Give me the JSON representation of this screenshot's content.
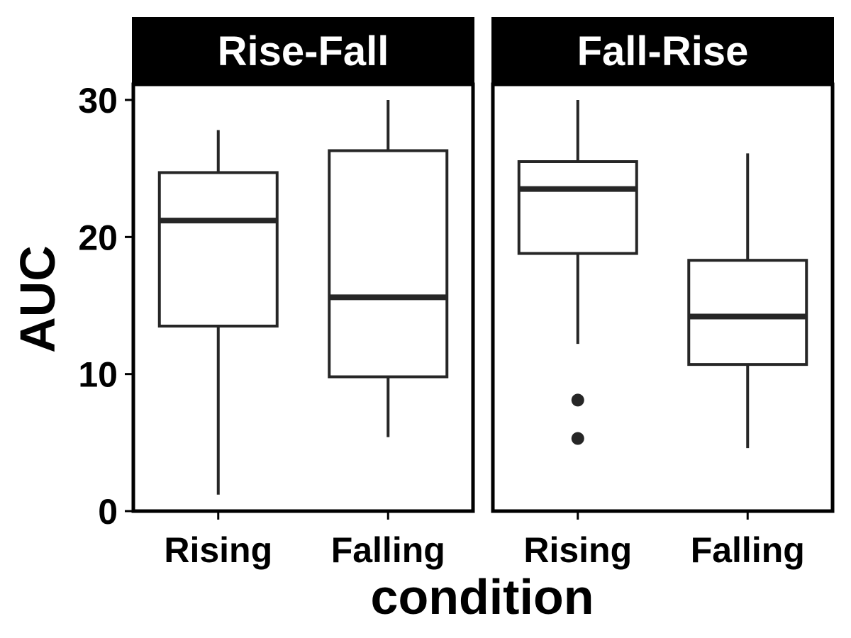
{
  "chart_data": {
    "type": "boxplot",
    "xlabel": "condition",
    "ylabel": "AUC",
    "ylim": [
      0,
      30
    ],
    "y_ticks": [
      0,
      10,
      20,
      30
    ],
    "categories": [
      "Rising",
      "Falling"
    ],
    "grid": false,
    "colors": {
      "box_stroke": "#262626",
      "box_fill": "#ffffff",
      "strip_fill": "#000000",
      "strip_text": "#ffffff"
    },
    "panels": [
      {
        "title": "Rise-Fall",
        "boxes": [
          {
            "category": "Rising",
            "whisker_low": 1.2,
            "q1": 13.5,
            "median": 21.2,
            "q3": 24.7,
            "whisker_high": 27.8,
            "outliers": []
          },
          {
            "category": "Falling",
            "whisker_low": 5.4,
            "q1": 9.8,
            "median": 15.6,
            "q3": 26.3,
            "whisker_high": 30.0,
            "outliers": []
          }
        ]
      },
      {
        "title": "Fall-Rise",
        "boxes": [
          {
            "category": "Rising",
            "whisker_low": 12.2,
            "q1": 18.8,
            "median": 23.5,
            "q3": 25.5,
            "whisker_high": 30.0,
            "outliers": [
              8.1,
              5.3
            ]
          },
          {
            "category": "Falling",
            "whisker_low": 4.6,
            "q1": 10.7,
            "median": 14.2,
            "q3": 18.3,
            "whisker_high": 26.1,
            "outliers": []
          }
        ]
      }
    ]
  }
}
